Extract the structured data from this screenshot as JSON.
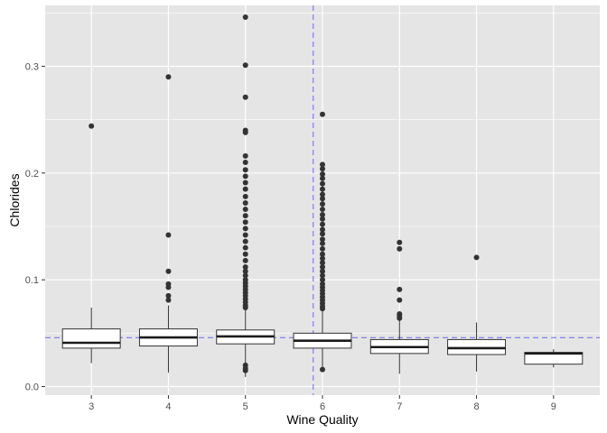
{
  "chart_data": {
    "type": "boxplot",
    "xlabel": "Wine Quality",
    "ylabel": "Chlorides",
    "categories": [
      "3",
      "4",
      "5",
      "6",
      "7",
      "8",
      "9"
    ],
    "y_ticks": [
      0.0,
      0.1,
      0.2,
      0.3
    ],
    "y_tick_labels": [
      "0.0",
      "0.1",
      "0.2",
      "0.3"
    ],
    "ylim": [
      -0.008,
      0.357
    ],
    "grid": true,
    "background": "#e5e5e5",
    "grid_color": "#ffffff",
    "reference_color": "#7777ee",
    "box_fill": "#ffffff",
    "box_stroke": "#333333",
    "reference_lines": {
      "vertical_x": 5.88,
      "horizontal_y": 0.0458
    },
    "boxes": [
      {
        "category": "3",
        "whisker_low": 0.022,
        "q1": 0.036,
        "median": 0.041,
        "q3": 0.054,
        "whisker_high": 0.074,
        "outliers": [
          0.244
        ]
      },
      {
        "category": "4",
        "whisker_low": 0.013,
        "q1": 0.038,
        "median": 0.046,
        "q3": 0.054,
        "whisker_high": 0.076,
        "outliers": [
          0.29,
          0.142,
          0.108,
          0.096,
          0.093,
          0.085,
          0.081
        ]
      },
      {
        "category": "5",
        "whisker_low": 0.009,
        "q1": 0.04,
        "median": 0.047,
        "q3": 0.053,
        "whisker_high": 0.072,
        "outliers": [
          0.346,
          0.301,
          0.271,
          0.24,
          0.238,
          0.216,
          0.21,
          0.203,
          0.197,
          0.191,
          0.185,
          0.178,
          0.172,
          0.166,
          0.16,
          0.154,
          0.148,
          0.142,
          0.136,
          0.13,
          0.124,
          0.118,
          0.112,
          0.108,
          0.104,
          0.1,
          0.097,
          0.094,
          0.091,
          0.088,
          0.085,
          0.082,
          0.079,
          0.076,
          0.074,
          0.02,
          0.017,
          0.015
        ]
      },
      {
        "category": "6",
        "whisker_low": 0.015,
        "q1": 0.036,
        "median": 0.043,
        "q3": 0.05,
        "whisker_high": 0.071,
        "outliers": [
          0.255,
          0.208,
          0.204,
          0.199,
          0.195,
          0.19,
          0.185,
          0.18,
          0.176,
          0.171,
          0.166,
          0.161,
          0.157,
          0.152,
          0.147,
          0.143,
          0.138,
          0.134,
          0.129,
          0.124,
          0.12,
          0.116,
          0.112,
          0.108,
          0.104,
          0.1,
          0.096,
          0.093,
          0.09,
          0.087,
          0.084,
          0.081,
          0.078,
          0.075,
          0.073,
          0.016
        ]
      },
      {
        "category": "7",
        "whisker_low": 0.012,
        "q1": 0.031,
        "median": 0.037,
        "q3": 0.044,
        "whisker_high": 0.062,
        "outliers": [
          0.135,
          0.129,
          0.091,
          0.081,
          0.068,
          0.066,
          0.064
        ]
      },
      {
        "category": "8",
        "whisker_low": 0.014,
        "q1": 0.03,
        "median": 0.036,
        "q3": 0.044,
        "whisker_high": 0.06,
        "outliers": [
          0.121
        ]
      },
      {
        "category": "9",
        "whisker_low": 0.018,
        "q1": 0.021,
        "median": 0.031,
        "q3": 0.032,
        "whisker_high": 0.035,
        "outliers": []
      }
    ]
  }
}
